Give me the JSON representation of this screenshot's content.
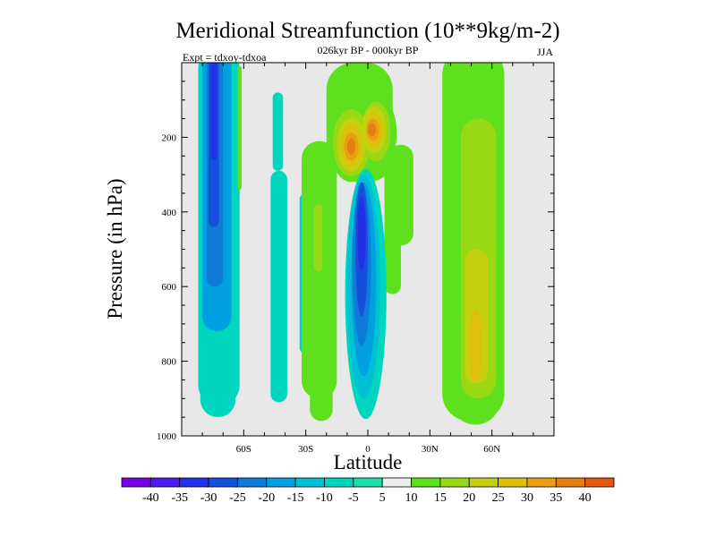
{
  "chart_data": {
    "type": "heatmap",
    "title": "Meridional Streamfunction (10**9kg/m-2)",
    "subtitle": "026kyr BP - 000kyr BP",
    "left_label": "Expt = tdxoy-tdxoa",
    "right_label": "JJA",
    "xlabel": "Latitude",
    "ylabel": "Pressure (in hPa)",
    "xlim": [
      -90,
      90
    ],
    "ylim": [
      1000,
      0
    ],
    "y_inverted": true,
    "x_ticks": [
      {
        "value": -60,
        "label": "60S"
      },
      {
        "value": -30,
        "label": "30S"
      },
      {
        "value": 0,
        "label": "0"
      },
      {
        "value": 30,
        "label": "30N"
      },
      {
        "value": 60,
        "label": "60N"
      }
    ],
    "y_ticks": [
      {
        "value": 200,
        "label": "200"
      },
      {
        "value": 400,
        "label": "400"
      },
      {
        "value": 600,
        "label": "600"
      },
      {
        "value": 800,
        "label": "800"
      },
      {
        "value": 1000,
        "label": "1000"
      }
    ],
    "colorbar": {
      "levels": [
        -40,
        -35,
        -30,
        -25,
        -20,
        -15,
        -10,
        -5,
        5,
        10,
        15,
        20,
        25,
        30,
        35,
        40
      ],
      "labels": [
        "-40",
        "-35",
        "-30",
        "-25",
        "-20",
        "-15",
        "-10",
        "-5",
        "5",
        "10",
        "15",
        "20",
        "25",
        "30",
        "35",
        "40"
      ],
      "colors": [
        "#7a00e6",
        "#4a1cf0",
        "#2231e6",
        "#1450dc",
        "#0f7ad8",
        "#00a0e0",
        "#00c0d6",
        "#00d6be",
        "#19e0a8",
        "#eeeeee",
        "#5ee01e",
        "#98d814",
        "#c4d010",
        "#e0be0e",
        "#e8a010",
        "#e48012",
        "#e45812"
      ]
    },
    "background_color": "#e8e8e8",
    "features": [
      {
        "name": "sh-high-lat-negative-cell",
        "lat_range": [
          -78,
          -62
        ],
        "p_range": [
          10,
          950
        ],
        "min_value": -35
      },
      {
        "name": "equatorial-negative-cell",
        "lat_range": [
          -8,
          8
        ],
        "p_range": [
          290,
          960
        ],
        "min_value": -35
      },
      {
        "name": "upper-equatorial-positive-cell-west",
        "lat_range": [
          -14,
          -4
        ],
        "p_range": [
          110,
          320
        ],
        "max_value": 35
      },
      {
        "name": "upper-equatorial-positive-cell-east",
        "lat_range": [
          0,
          8
        ],
        "p_range": [
          100,
          230
        ],
        "max_value": 35
      },
      {
        "name": "nh-midlat-positive-cell",
        "lat_range": [
          40,
          65
        ],
        "p_range": [
          10,
          970
        ],
        "max_value": 25
      },
      {
        "name": "sh-midlat-positive-band",
        "lat_range": [
          -32,
          -16
        ],
        "p_range": [
          210,
          960
        ],
        "max_value": 10
      },
      {
        "name": "nh-subtropical-positive-band",
        "lat_range": [
          10,
          22
        ],
        "p_range": [
          220,
          480
        ],
        "max_value": 10
      },
      {
        "name": "sh-midlat-negative-band",
        "lat_range": [
          -48,
          -38
        ],
        "p_range": [
          290,
          910
        ],
        "min_value": -10
      },
      {
        "name": "sh-upper-negative-band",
        "lat_range": [
          -45,
          -40
        ],
        "p_range": [
          80,
          280
        ],
        "min_value": -10
      }
    ]
  }
}
